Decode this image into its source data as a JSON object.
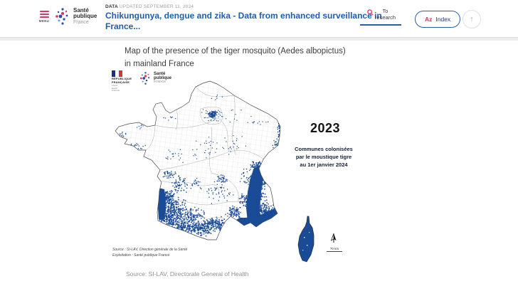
{
  "header": {
    "menu_label": "MENU",
    "brand": {
      "line1": "Santé",
      "line2": "publique",
      "line3": "France"
    },
    "kicker_label": "DATA",
    "kicker_updated": "UPDATED SEPTEMBER 11, 2024",
    "title": "Chikungunya, dengue and zika - Data from enhanced surveillance in France...",
    "search_line1": "To",
    "search_line2": "research",
    "index_az": "Az",
    "index_label": "Index"
  },
  "content": {
    "map_title": "Map of the presence of the tiger mosquito (Aedes albopictus) in mainland France",
    "rf_logo": {
      "line1": "RÉPUBLIQUE",
      "line2": "FRANÇAISE",
      "motto1": "Liberté",
      "motto2": "Égalité",
      "motto3": "Fraternité"
    },
    "spf_logo": {
      "line1": "Santé",
      "line2": "publique",
      "line3": "France"
    },
    "year": "2023",
    "legend_line1": "Communes colonisées",
    "legend_line2": "par le moustique tigre",
    "legend_line3": "au 1er janvier 2024",
    "scale_label": "70 km",
    "map_source_line1": "Source : SI-LAV, Direction générale de la Santé",
    "map_source_line2": "Exploitation : Santé publique France",
    "page_source": "Source: SI-LAV, Directorate General of Health"
  },
  "map": {
    "colors": {
      "dot": "#1a4b96",
      "outline": "#4a4a4a",
      "dept": "#ababab",
      "mesh": "#e3e3e3"
    },
    "clusters": [
      [
        85,
        186,
        20,
        18,
        220,
        1.5
      ],
      [
        76,
        168,
        12,
        10,
        120,
        1.5
      ],
      [
        80,
        200,
        16,
        12,
        140,
        1.5
      ],
      [
        100,
        210,
        20,
        10,
        120,
        1.5
      ],
      [
        125,
        212,
        20,
        12,
        180,
        1.5
      ],
      [
        145,
        205,
        14,
        10,
        100,
        1.5
      ],
      [
        163,
        212,
        16,
        12,
        160,
        1.6
      ],
      [
        110,
        195,
        22,
        14,
        150,
        1.4
      ],
      [
        95,
        150,
        12,
        14,
        60,
        1.4
      ],
      [
        80,
        135,
        10,
        8,
        35,
        1.4
      ],
      [
        205,
        160,
        14,
        28,
        170,
        1.5
      ],
      [
        206,
        126,
        13,
        9,
        120,
        1.5
      ],
      [
        210,
        188,
        22,
        12,
        170,
        1.5
      ],
      [
        226,
        193,
        9,
        6,
        70,
        1.5
      ],
      [
        190,
        175,
        12,
        12,
        80,
        1.4
      ],
      [
        170,
        190,
        12,
        10,
        80,
        1.4
      ],
      [
        141,
        52,
        7,
        5,
        80,
        1.4
      ],
      [
        141,
        53,
        16,
        11,
        40,
        1.2
      ],
      [
        236,
        73,
        4,
        16,
        60,
        1.4
      ],
      [
        231,
        94,
        6,
        8,
        25,
        1.3
      ],
      [
        150,
        160,
        22,
        18,
        45,
        1.3
      ],
      [
        155,
        143,
        9,
        7,
        30,
        1.4
      ],
      [
        120,
        150,
        12,
        10,
        22,
        1.3
      ],
      [
        130,
        100,
        22,
        18,
        28,
        1.2
      ],
      [
        172,
        95,
        18,
        14,
        22,
        1.2
      ],
      [
        90,
        110,
        16,
        10,
        20,
        1.2
      ],
      [
        35,
        97,
        14,
        6,
        18,
        1.3
      ],
      [
        14,
        80,
        6,
        7,
        10,
        1.3
      ],
      [
        42,
        70,
        12,
        5,
        8,
        1.2
      ],
      [
        80,
        60,
        14,
        8,
        8,
        1.2
      ],
      [
        205,
        64,
        16,
        11,
        12,
        1.2
      ],
      [
        172,
        55,
        14,
        10,
        8,
        1.2
      ],
      [
        148,
        28,
        12,
        8,
        6,
        1.2
      ],
      [
        225,
        110,
        8,
        8,
        20,
        1.3
      ],
      [
        215,
        145,
        10,
        10,
        40,
        1.4
      ],
      [
        188,
        140,
        10,
        12,
        35,
        1.3
      ]
    ]
  }
}
